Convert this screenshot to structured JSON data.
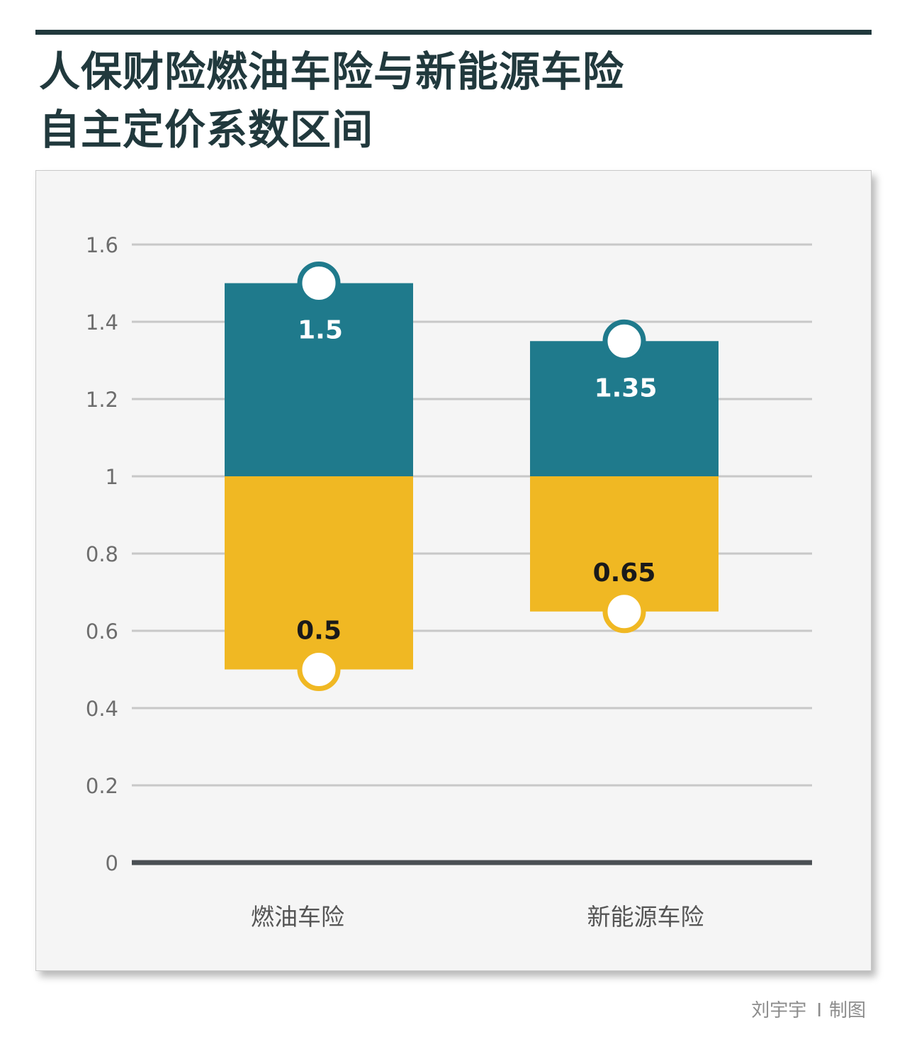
{
  "title_lines": [
    "人保财险燃油车险与新能源车险",
    "自主定价系数区间"
  ],
  "credit": {
    "author": "刘宇宇",
    "separator": "I",
    "role": "制图"
  },
  "chart_data": {
    "type": "bar",
    "title": "人保财险燃油车险与新能源车险自主定价系数区间",
    "categories": [
      "燃油车险",
      "新能源车险"
    ],
    "ylim": [
      0,
      1.6
    ],
    "yticks": [
      "0",
      "0.2",
      "0.4",
      "0.6",
      "0.8",
      "1",
      "1.2",
      "1.4",
      "1.6"
    ],
    "baseline": 1,
    "series": [
      {
        "values": [
          1.5,
          1.35
        ],
        "labels": [
          "1.5",
          "1.35"
        ],
        "color": "#1f7a8c"
      },
      {
        "values": [
          0.5,
          0.65
        ],
        "labels": [
          "0.5",
          "0.65"
        ],
        "color": "#f0b823"
      }
    ],
    "grid": true,
    "colors": {
      "gridline": "#c8c8c8",
      "axis": "#4a4f53",
      "tick_text": "#6d6d6d",
      "category_text": "#555555",
      "upper_label": "#ffffff",
      "lower_label": "#1a1a1a"
    }
  }
}
